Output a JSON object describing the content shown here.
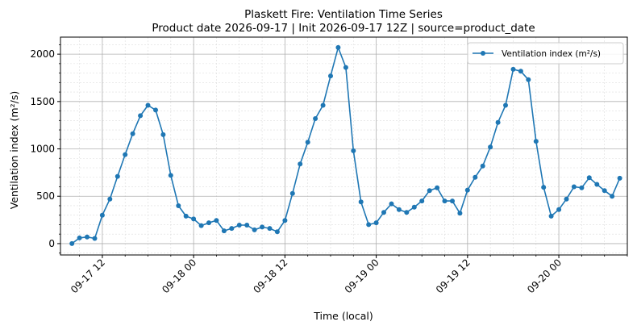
{
  "chart_data": {
    "type": "line",
    "title": "Plaskett Fire: Ventilation Time Series",
    "subtitle": "Product date 2026-09-17 | Init 2026-09-17 12Z | source=product_date",
    "xlabel": "Time (local)",
    "ylabel": "Ventilation index (m²/s)",
    "x_range": [
      "2026-09-17 06:30",
      "2026-09-20 09:00"
    ],
    "y_range": [
      -120,
      2180
    ],
    "y_ticks": [
      0,
      500,
      1000,
      1500,
      2000
    ],
    "x_ticks": [
      {
        "time": "2026-09-17 12:00",
        "label": "09-17 12"
      },
      {
        "time": "2026-09-18 00:00",
        "label": "09-18 00"
      },
      {
        "time": "2026-09-18 12:00",
        "label": "09-18 12"
      },
      {
        "time": "2026-09-19 00:00",
        "label": "09-19 00"
      },
      {
        "time": "2026-09-19 12:00",
        "label": "09-19 12"
      },
      {
        "time": "2026-09-20 00:00",
        "label": "09-20 00"
      }
    ],
    "grid": true,
    "legend_position": "top-right",
    "series": [
      {
        "name": "Ventilation index (m²/s)",
        "color": "#1f77b4",
        "start_time": "2026-09-17 08:00",
        "step_hours": 1,
        "values": [
          0,
          60,
          70,
          55,
          300,
          470,
          710,
          940,
          1160,
          1350,
          1460,
          1410,
          1150,
          720,
          400,
          290,
          260,
          190,
          220,
          245,
          135,
          160,
          195,
          195,
          145,
          175,
          160,
          125,
          245,
          530,
          840,
          1070,
          1320,
          1460,
          1770,
          2070,
          1860,
          980,
          440,
          200,
          220,
          330,
          420,
          360,
          330,
          385,
          450,
          560,
          590,
          450,
          450,
          320,
          565,
          700,
          820,
          1020,
          1280,
          1460,
          1840,
          1820,
          1730,
          1080,
          595,
          290,
          360,
          470,
          600,
          590,
          695,
          625,
          560,
          500,
          690
        ]
      }
    ]
  }
}
